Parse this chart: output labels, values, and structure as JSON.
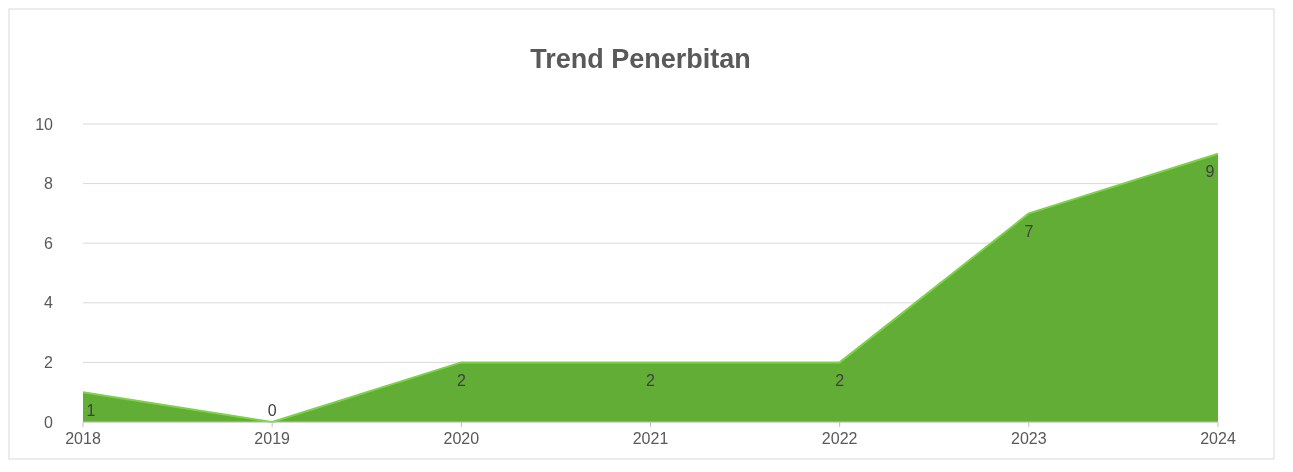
{
  "chart_data": {
    "type": "area",
    "title": "Trend Penerbitan",
    "categories": [
      "2018",
      "2019",
      "2020",
      "2021",
      "2022",
      "2023",
      "2024"
    ],
    "values": [
      1,
      0,
      2,
      2,
      2,
      7,
      9
    ],
    "color": "#62ad35",
    "ylim": [
      0,
      10
    ],
    "yticks": [
      0,
      2,
      4,
      6,
      8,
      10
    ],
    "grid": "y",
    "data_labels": true
  }
}
